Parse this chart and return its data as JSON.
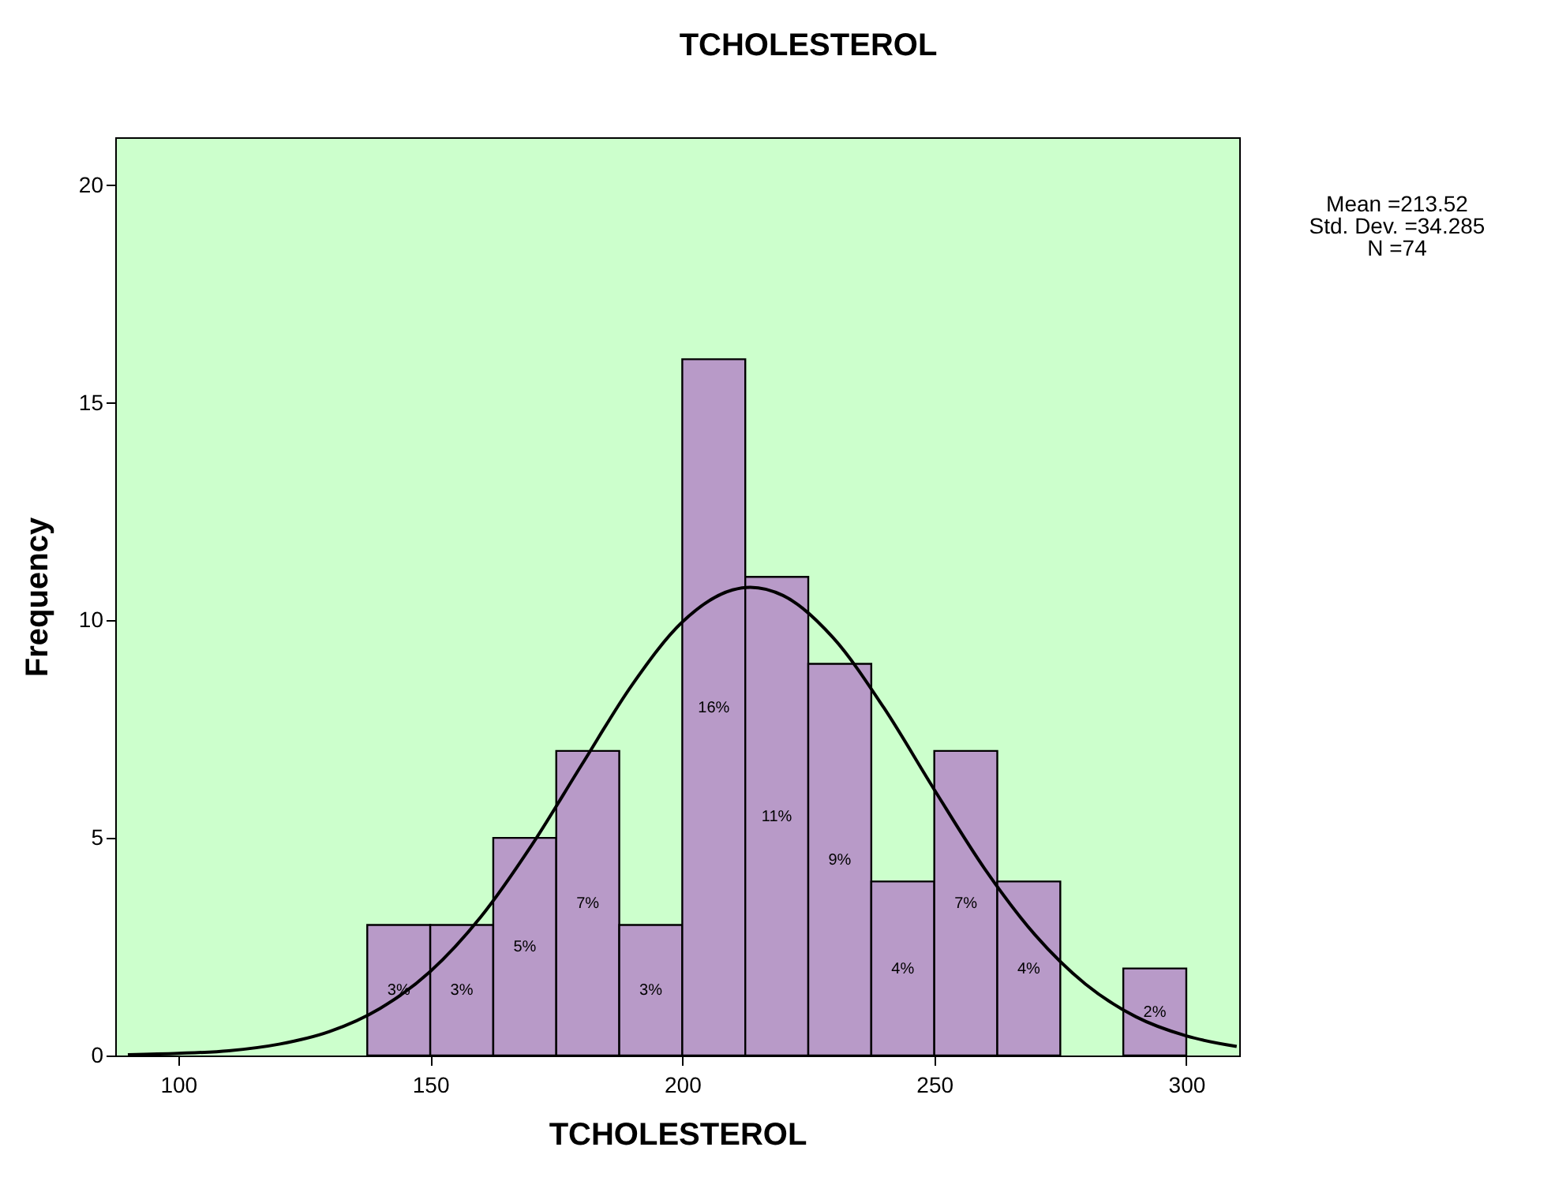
{
  "chart_data": {
    "type": "histogram",
    "title": "TCHOLESTEROL",
    "xlabel": "TCHOLESTEROL",
    "ylabel": "Frequency",
    "bins": [
      137.5,
      150,
      162.5,
      175,
      187.5,
      200,
      212.5,
      225,
      237.5,
      250,
      262.5,
      275,
      287.5,
      300
    ],
    "values": [
      3,
      3,
      5,
      7,
      3,
      16,
      11,
      9,
      4,
      7,
      4,
      0,
      2
    ],
    "value_labels": [
      "3%",
      "3%",
      "5%",
      "7%",
      "3%",
      "16%",
      "11%",
      "9%",
      "4%",
      "7%",
      "4%",
      null,
      "2%"
    ],
    "color": "#b89ac8",
    "series": [
      {
        "type": "line",
        "color": "#000000",
        "x": [
          90,
          100,
          110,
          120,
          130,
          140,
          150,
          160,
          170,
          180,
          190,
          200,
          210,
          213.5,
          220,
          230,
          240,
          250,
          260,
          270,
          280,
          290,
          300,
          310
        ],
        "values": [
          0.02,
          0.05,
          0.11,
          0.26,
          0.55,
          1.08,
          1.93,
          3.18,
          4.81,
          6.67,
          8.51,
          9.96,
          10.7,
          10.76,
          10.57,
          9.59,
          7.99,
          6.11,
          4.29,
          2.77,
          1.64,
          0.89,
          0.45,
          0.21
        ]
      }
    ],
    "xlim": [
      87.5,
      310.5
    ],
    "xticks": [
      100,
      150,
      200,
      250,
      300
    ],
    "ylim": [
      0,
      21.1
    ],
    "yticks": [
      0,
      5,
      10,
      15,
      20
    ],
    "grid": false,
    "annotations": [
      "Mean =213.52",
      "Std. Dev. =34.285",
      "N =74"
    ]
  }
}
